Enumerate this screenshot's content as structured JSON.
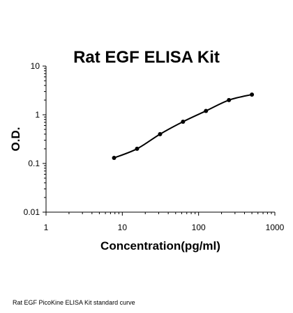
{
  "chart_data": {
    "type": "scatter",
    "title": "Rat EGF ELISA Kit",
    "xlabel": "Concentration(pg/ml)",
    "ylabel": "O.D.",
    "x_scale": "log",
    "y_scale": "log",
    "xlim": [
      1,
      1000
    ],
    "ylim": [
      0.01,
      10
    ],
    "x_ticks": [
      "1",
      "10",
      "100",
      "1000"
    ],
    "y_ticks": [
      "0.01",
      "0.1",
      "1",
      "10"
    ],
    "grid": false,
    "legend": "none",
    "series": [
      {
        "x": [
          7.8,
          15.6,
          31.25,
          62.5,
          125,
          250,
          500
        ],
        "y": [
          0.13,
          0.2,
          0.4,
          0.72,
          1.2,
          2.0,
          2.6
        ],
        "fit_curve": true,
        "color": "#000000"
      }
    ]
  },
  "caption": "Rat EGF PicoKine ELISA Kit standard curve"
}
